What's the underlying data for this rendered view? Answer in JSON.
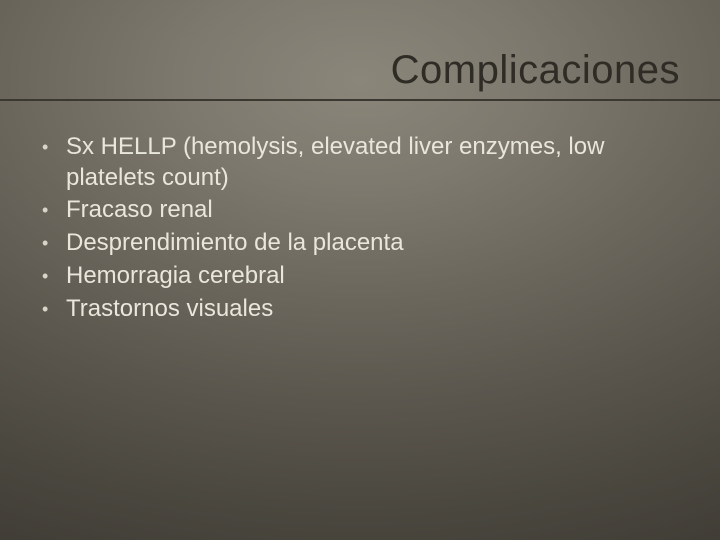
{
  "slide": {
    "title": "Complicaciones",
    "title_color": "#2f2c26",
    "title_fontsize": 40,
    "underline_color": "#3b3832",
    "body_color": "#e9e6dc",
    "body_fontsize": 24,
    "bullet_glyph": "•",
    "background_gradient": {
      "type": "radial",
      "stops": [
        "#8a867a",
        "#7d796e",
        "#6b675d",
        "#5a564d",
        "#4a473f",
        "#3d3a33"
      ]
    },
    "items": [
      "Sx HELLP (hemolysis, elevated liver enzymes, low platelets count)",
      "Fracaso renal",
      "Desprendimiento de la placenta",
      "Hemorragia cerebral",
      "Trastornos visuales"
    ]
  }
}
